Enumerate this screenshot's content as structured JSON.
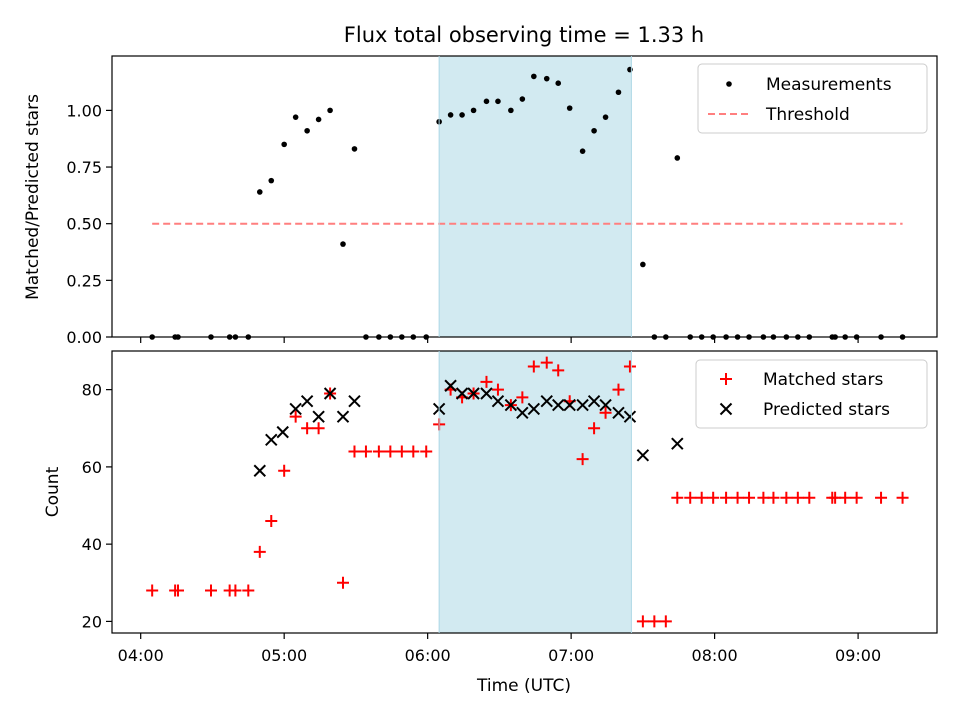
{
  "figure": {
    "title": "Flux total observing time = 1.33 h",
    "xlabel": "Time (UTC)",
    "x_tick_labels": [
      "04:00",
      "05:00",
      "06:00",
      "07:00",
      "08:00",
      "09:00"
    ]
  },
  "colors": {
    "measurements": "#000000",
    "threshold": "#ff7f7f",
    "matched": "#ff0000",
    "predicted": "#000000",
    "span": "#add8e6"
  },
  "chart_data": [
    {
      "type": "scatter",
      "panel": "top",
      "ylabel": "Matched/Predicted stars",
      "x_unit": "hours UTC",
      "xlim": [
        3.8,
        9.55
      ],
      "ylim": [
        0,
        1.24
      ],
      "yticks": [
        0.0,
        0.25,
        0.5,
        0.75,
        1.0
      ],
      "ytick_labels": [
        "0.00",
        "0.25",
        "0.50",
        "0.75",
        "1.00"
      ],
      "grid": false,
      "legend_position": "top-right",
      "highlight_span": [
        6.08,
        7.42
      ],
      "series": [
        {
          "name": "Measurements",
          "marker": "dot",
          "x": [
            4.08,
            4.24,
            4.26,
            4.49,
            4.62,
            4.66,
            4.75,
            4.83,
            4.91,
            5.0,
            5.08,
            5.16,
            5.24,
            5.32,
            5.41,
            5.49,
            5.57,
            5.66,
            5.74,
            5.82,
            5.9,
            5.99,
            6.08,
            6.16,
            6.24,
            6.32,
            6.41,
            6.49,
            6.58,
            6.66,
            6.74,
            6.83,
            6.91,
            6.99,
            7.08,
            7.16,
            7.24,
            7.33,
            7.41,
            7.5,
            7.58,
            7.66,
            7.74,
            7.83,
            7.91,
            7.99,
            8.08,
            8.16,
            8.24,
            8.34,
            8.41,
            8.5,
            8.58,
            8.66,
            8.82,
            8.84,
            8.91,
            8.99,
            9.16,
            9.31
          ],
          "y": [
            0.0,
            0.0,
            0.0,
            0.0,
            0.0,
            0.0,
            0.0,
            0.64,
            0.69,
            0.85,
            0.97,
            0.91,
            0.96,
            1.0,
            0.41,
            0.83,
            0.0,
            0.0,
            0.0,
            0.0,
            0.0,
            0.0,
            0.95,
            0.98,
            0.98,
            1.0,
            1.04,
            1.04,
            1.0,
            1.05,
            1.15,
            1.14,
            1.12,
            1.01,
            0.82,
            0.91,
            0.97,
            1.08,
            1.18,
            0.32,
            0.0,
            0.0,
            0.79,
            0.0,
            0.0,
            0.0,
            0.0,
            0.0,
            0.0,
            0.0,
            0.0,
            0.0,
            0.0,
            0.0,
            0.0,
            0.0,
            0.0,
            0.0,
            0.0,
            0.0
          ]
        },
        {
          "name": "Threshold",
          "marker": "dashed-line",
          "x": [
            4.08,
            9.31
          ],
          "y": [
            0.5,
            0.5
          ]
        }
      ]
    },
    {
      "type": "scatter",
      "panel": "bottom",
      "ylabel": "Count",
      "x_unit": "hours UTC",
      "xlim": [
        3.8,
        9.55
      ],
      "ylim": [
        17,
        90
      ],
      "yticks": [
        20,
        40,
        60,
        80
      ],
      "ytick_labels": [
        "20",
        "40",
        "60",
        "80"
      ],
      "grid": false,
      "legend_position": "top-right",
      "highlight_span": [
        6.08,
        7.42
      ],
      "series": [
        {
          "name": "Matched stars",
          "marker": "plus",
          "x": [
            4.08,
            4.24,
            4.26,
            4.49,
            4.62,
            4.66,
            4.75,
            4.83,
            4.91,
            5.0,
            5.08,
            5.16,
            5.24,
            5.32,
            5.41,
            5.49,
            5.57,
            5.66,
            5.74,
            5.82,
            5.9,
            5.99,
            6.08,
            6.16,
            6.24,
            6.32,
            6.41,
            6.49,
            6.58,
            6.66,
            6.74,
            6.83,
            6.91,
            6.99,
            7.08,
            7.16,
            7.24,
            7.33,
            7.41,
            7.5,
            7.58,
            7.66,
            7.74,
            7.83,
            7.91,
            7.99,
            8.08,
            8.16,
            8.24,
            8.34,
            8.41,
            8.5,
            8.58,
            8.66,
            8.82,
            8.84,
            8.91,
            8.99,
            9.16,
            9.31
          ],
          "y": [
            28,
            28,
            28,
            28,
            28,
            28,
            28,
            38,
            46,
            59,
            73,
            70,
            70,
            79,
            30,
            64,
            64,
            64,
            64,
            64,
            64,
            64,
            71,
            80,
            78,
            79,
            82,
            80,
            76,
            78,
            86,
            87,
            85,
            77,
            62,
            70,
            74,
            80,
            86,
            20,
            20,
            20,
            52,
            52,
            52,
            52,
            52,
            52,
            52,
            52,
            52,
            52,
            52,
            52,
            52,
            52,
            52,
            52,
            52,
            52
          ]
        },
        {
          "name": "Predicted stars",
          "marker": "x",
          "x": [
            4.83,
            4.91,
            4.99,
            5.08,
            5.16,
            5.24,
            5.32,
            5.41,
            5.49,
            6.08,
            6.16,
            6.24,
            6.32,
            6.41,
            6.49,
            6.58,
            6.66,
            6.74,
            6.83,
            6.91,
            6.99,
            7.08,
            7.16,
            7.24,
            7.33,
            7.41,
            7.5,
            7.74
          ],
          "y": [
            59,
            67,
            69,
            75,
            77,
            73,
            79,
            73,
            77,
            75,
            81,
            79,
            79,
            79,
            77,
            76,
            74,
            75,
            77,
            76,
            76,
            76,
            77,
            76,
            74,
            73,
            63,
            66
          ]
        }
      ]
    }
  ]
}
